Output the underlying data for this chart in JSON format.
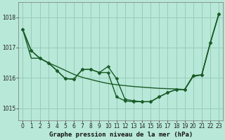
{
  "title": "Graphe pression niveau de la mer (hPa)",
  "background_color": "#b8e8d8",
  "grid_color": "#99ccbb",
  "line_color": "#1a5c28",
  "xlim": [
    -0.5,
    23.5
  ],
  "ylim": [
    1014.6,
    1018.5
  ],
  "yticks": [
    1015,
    1016,
    1017,
    1018
  ],
  "xticks": [
    0,
    1,
    2,
    3,
    4,
    5,
    6,
    7,
    8,
    9,
    10,
    11,
    12,
    13,
    14,
    15,
    16,
    17,
    18,
    19,
    20,
    21,
    22,
    23
  ],
  "series": [
    {
      "y": [
        1017.6,
        1016.65,
        1016.65,
        1016.5,
        1016.38,
        1016.25,
        1016.12,
        1016.02,
        1015.95,
        1015.88,
        1015.82,
        1015.78,
        1015.75,
        1015.72,
        1015.7,
        1015.68,
        1015.66,
        1015.65,
        1015.64,
        1015.62,
        1016.05,
        1016.1,
        1017.15,
        1018.1
      ],
      "marker": false,
      "linewidth": 1.0
    },
    {
      "y": [
        1017.6,
        1016.9,
        1016.65,
        1016.5,
        1016.25,
        1015.98,
        1015.96,
        1016.28,
        1016.28,
        1016.18,
        1016.38,
        1015.98,
        1015.3,
        1015.25,
        1015.22,
        1015.22,
        1015.38,
        1015.52,
        1015.62,
        1015.62,
        1016.08,
        1016.1,
        1017.15,
        1018.1
      ],
      "marker": true,
      "linewidth": 1.0
    },
    {
      "y": [
        1017.6,
        1016.9,
        1016.65,
        1016.5,
        1016.25,
        1015.98,
        1015.96,
        1016.28,
        1016.28,
        1016.18,
        1016.18,
        1015.38,
        1015.25,
        1015.22,
        1015.22,
        1015.22,
        1015.38,
        1015.52,
        1015.62,
        1015.62,
        1016.08,
        1016.1,
        1017.15,
        1018.1
      ],
      "marker": true,
      "linewidth": 1.0
    }
  ],
  "marker_size": 2.5,
  "tick_fontsize": 5.5,
  "xlabel_fontsize": 6.5
}
